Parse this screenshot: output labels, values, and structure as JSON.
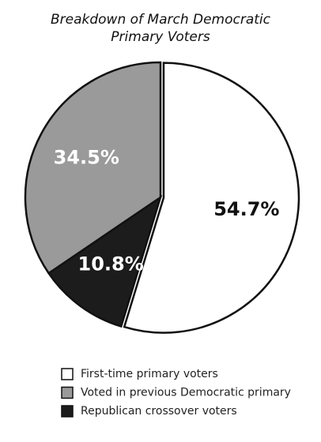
{
  "chart_data": {
    "type": "pie",
    "title": "Breakdown of March Democratic Primary Voters",
    "categories": [
      "First-time primary voters",
      "Republican crossover voters",
      "Voted in previous Democratic primary"
    ],
    "values": [
      54.7,
      10.8,
      34.5
    ],
    "value_labels": [
      "54.7%",
      "10.8%",
      "34.5%"
    ],
    "colors": [
      "#ffffff",
      "#1c1c1c",
      "#9a9a9a"
    ],
    "legend_order": [
      0,
      2,
      1
    ]
  }
}
